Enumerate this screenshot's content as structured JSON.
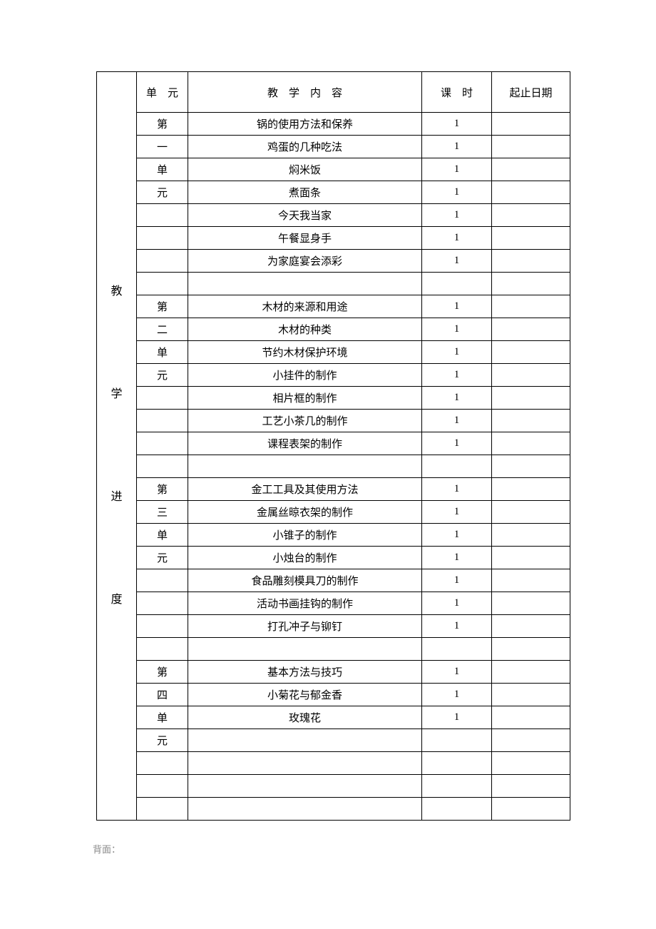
{
  "side_label": "教\n\n\n学\n\n\n进\n\n\n度",
  "headers": {
    "unit": "单　元",
    "content": "教　学　内　容",
    "hours": "课　时",
    "date": "起止日期"
  },
  "rows": [
    {
      "unit": "第",
      "content": "锅的使用方法和保养",
      "hours": "1",
      "date": ""
    },
    {
      "unit": "一",
      "content": "鸡蛋的几种吃法",
      "hours": "1",
      "date": ""
    },
    {
      "unit": "单",
      "content": "焖米饭",
      "hours": "1",
      "date": ""
    },
    {
      "unit": "元",
      "content": "煮面条",
      "hours": "1",
      "date": ""
    },
    {
      "unit": "",
      "content": "今天我当家",
      "hours": "1",
      "date": ""
    },
    {
      "unit": "",
      "content": "午餐显身手",
      "hours": "1",
      "date": ""
    },
    {
      "unit": "",
      "content": "为家庭宴会添彩",
      "hours": "1",
      "date": ""
    },
    {
      "unit": "",
      "content": "",
      "hours": "",
      "date": ""
    },
    {
      "unit": "第",
      "content": "木材的来源和用途",
      "hours": "1",
      "date": ""
    },
    {
      "unit": "二",
      "content": "木材的种类",
      "hours": "1",
      "date": ""
    },
    {
      "unit": "单",
      "content": "节约木材保护环境",
      "hours": "1",
      "date": ""
    },
    {
      "unit": "元",
      "content": "小挂件的制作",
      "hours": "1",
      "date": ""
    },
    {
      "unit": "",
      "content": "相片框的制作",
      "hours": "1",
      "date": ""
    },
    {
      "unit": "",
      "content": "工艺小茶几的制作",
      "hours": "1",
      "date": ""
    },
    {
      "unit": "",
      "content": "课程表架的制作",
      "hours": "1",
      "date": ""
    },
    {
      "unit": "",
      "content": "",
      "hours": "",
      "date": ""
    },
    {
      "unit": "第",
      "content": "金工工具及其使用方法",
      "hours": "1",
      "date": ""
    },
    {
      "unit": "三",
      "content": "金属丝晾衣架的制作",
      "hours": "1",
      "date": ""
    },
    {
      "unit": "单",
      "content": "小锥子的制作",
      "hours": "1",
      "date": ""
    },
    {
      "unit": "元",
      "content": "小烛台的制作",
      "hours": "1",
      "date": ""
    },
    {
      "unit": "",
      "content": "食品雕刻模具刀的制作",
      "hours": "1",
      "date": ""
    },
    {
      "unit": "",
      "content": "活动书画挂钩的制作",
      "hours": "1",
      "date": ""
    },
    {
      "unit": "",
      "content": "打孔冲子与铆钉",
      "hours": "1",
      "date": ""
    },
    {
      "unit": "",
      "content": "",
      "hours": "",
      "date": ""
    },
    {
      "unit": "第",
      "content": "基本方法与技巧",
      "hours": "1",
      "date": ""
    },
    {
      "unit": "四",
      "content": "小菊花与郁金香",
      "hours": "1",
      "date": ""
    },
    {
      "unit": "单",
      "content": "玫瑰花",
      "hours": "1",
      "date": ""
    },
    {
      "unit": "元",
      "content": "",
      "hours": "",
      "date": ""
    },
    {
      "unit": "",
      "content": "",
      "hours": "",
      "date": ""
    },
    {
      "unit": "",
      "content": "",
      "hours": "",
      "date": ""
    },
    {
      "unit": "",
      "content": "",
      "hours": "",
      "date": ""
    }
  ],
  "footnote": "背面："
}
